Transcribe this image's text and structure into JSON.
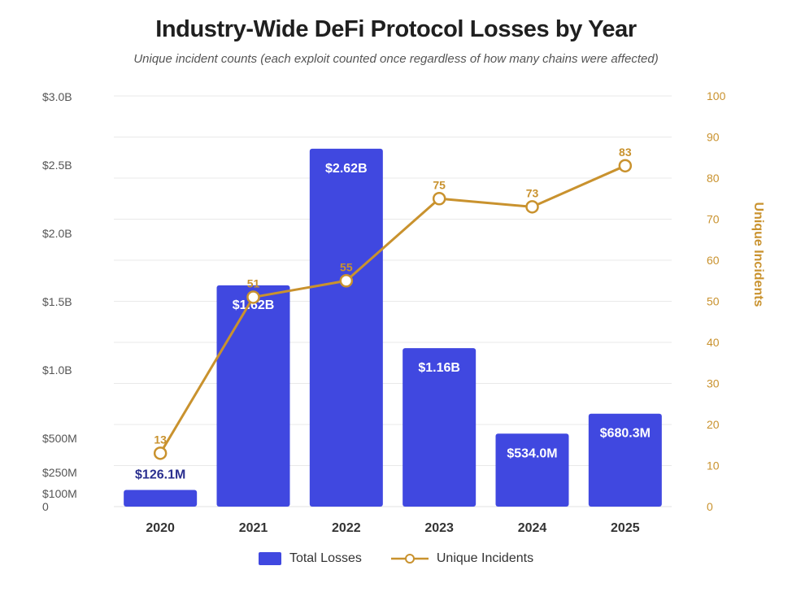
{
  "title": "Industry-Wide DeFi Protocol Losses by Year",
  "subtitle": "Unique incident counts (each exploit counted once regardless of how many chains were affected)",
  "colors": {
    "bar": "#4048e0",
    "line": "#c9922e",
    "bar_label_inside": "#ffffff",
    "bar_label_outside": "#2a2f8f"
  },
  "legend": {
    "bar_label": "Total Losses",
    "line_label": "Unique Incidents"
  },
  "chart_data": {
    "type": "bar",
    "title": "Industry-Wide DeFi Protocol Losses by Year",
    "subtitle": "Unique incident counts (each exploit counted once regardless of how many chains were affected)",
    "categories": [
      "2020",
      "2021",
      "2022",
      "2023",
      "2024",
      "2025"
    ],
    "left_axis": {
      "label": "",
      "ticks": [
        {
          "value": 0,
          "label": "0"
        },
        {
          "value": 100,
          "label": "$100M"
        },
        {
          "value": 250,
          "label": "$250M"
        },
        {
          "value": 500,
          "label": "$500M"
        },
        {
          "value": 1000,
          "label": "$1.0B"
        },
        {
          "value": 1500,
          "label": "$1.5B"
        },
        {
          "value": 2000,
          "label": "$2.0B"
        },
        {
          "value": 2500,
          "label": "$2.5B"
        },
        {
          "value": 3000,
          "label": "$3.0B"
        }
      ],
      "ylim": [
        0,
        3000
      ]
    },
    "right_axis": {
      "label": "Unique Incidents",
      "ticks": [
        0,
        10,
        20,
        30,
        40,
        50,
        60,
        70,
        80,
        90,
        100
      ],
      "ylim": [
        0,
        100
      ]
    },
    "series": [
      {
        "name": "Total Losses",
        "type": "bar",
        "axis": "left",
        "values": [
          126.1,
          1620,
          2620,
          1160,
          534.0,
          680.3
        ],
        "labels": [
          "$126.1M",
          "$1.62B",
          "$2.62B",
          "$1.16B",
          "$534.0M",
          "$680.3M"
        ]
      },
      {
        "name": "Unique Incidents",
        "type": "line",
        "axis": "right",
        "values": [
          13,
          51,
          55,
          75,
          73,
          83
        ],
        "labels": [
          "13",
          "51",
          "55",
          "75",
          "73",
          "83"
        ]
      }
    ],
    "grid": true,
    "legend_position": "bottom-center"
  }
}
